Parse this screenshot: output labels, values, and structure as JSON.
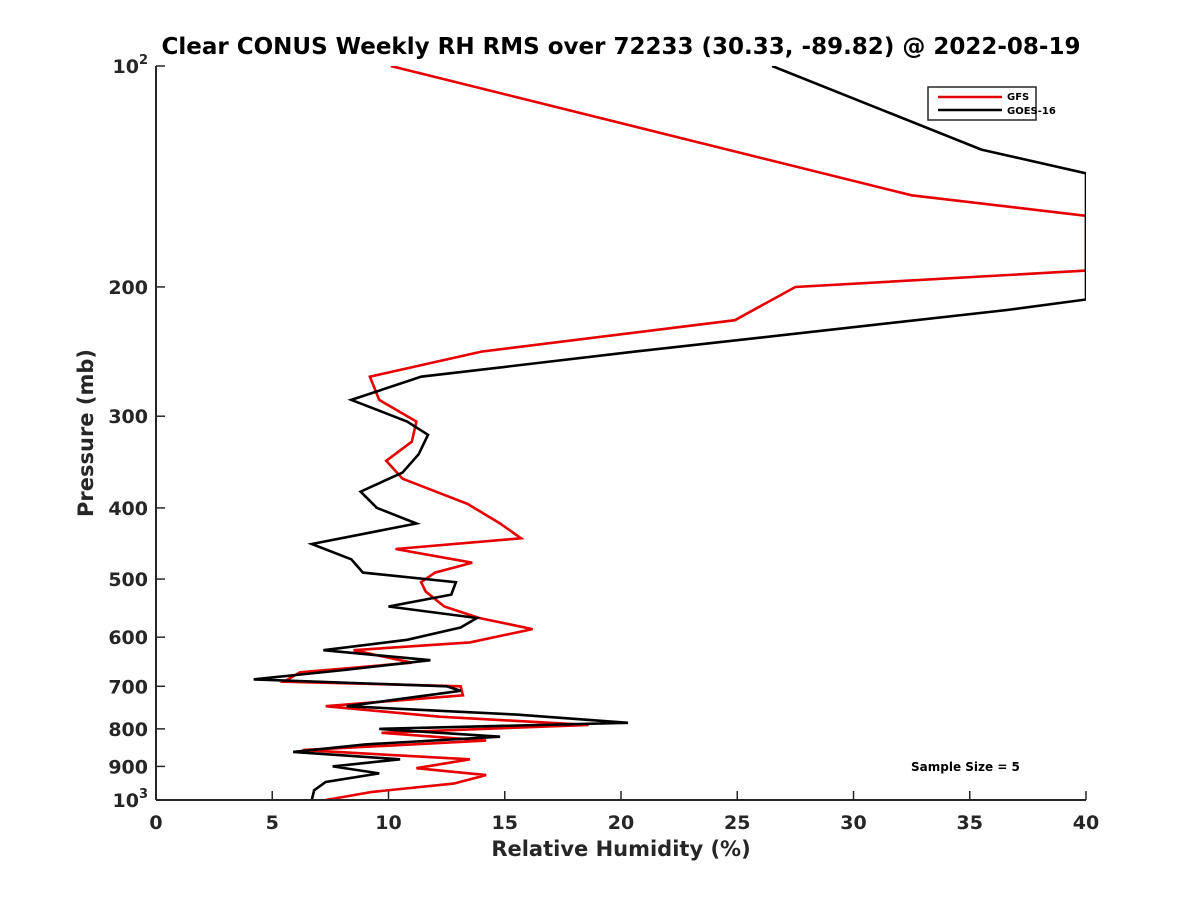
{
  "chart_data": {
    "type": "line",
    "title": "Clear CONUS Weekly RH RMS over 72233 (30.33, -89.82) @ 2022-08-19",
    "xlabel": "Relative Humidity (%)",
    "ylabel": "Pressure (mb)",
    "xlim": [
      0,
      40
    ],
    "ylim": [
      100,
      1000
    ],
    "yscale": "log",
    "y_reversed": true,
    "grid": false,
    "legend_position": "top-right",
    "x_ticks": [
      "0",
      "5",
      "10",
      "15",
      "20",
      "25",
      "30",
      "35",
      "40"
    ],
    "y_ticks": [
      {
        "value": 100,
        "base": "10",
        "exp": "2"
      },
      {
        "value": 200,
        "label": "200"
      },
      {
        "value": 300,
        "label": "300"
      },
      {
        "value": 400,
        "label": "400"
      },
      {
        "value": 500,
        "label": "500"
      },
      {
        "value": 600,
        "label": "600"
      },
      {
        "value": 700,
        "label": "700"
      },
      {
        "value": 800,
        "label": "800"
      },
      {
        "value": 900,
        "label": "900"
      },
      {
        "value": 1000,
        "base": "10",
        "exp": "3"
      }
    ],
    "annotation": "Sample Size = 5",
    "series": [
      {
        "name": "GFS",
        "color": "#e60000",
        "points": [
          [
            10.1,
            100
          ],
          [
            32.5,
            150
          ],
          [
            40,
            160
          ],
          [
            40,
            190
          ],
          [
            27.5,
            200
          ],
          [
            24.9,
            222
          ],
          [
            14,
            245
          ],
          [
            9.2,
            265
          ],
          [
            9.6,
            285
          ],
          [
            11.2,
            305
          ],
          [
            11,
            325
          ],
          [
            9.9,
            345
          ],
          [
            10.6,
            365
          ],
          [
            13.4,
            395
          ],
          [
            14.8,
            420
          ],
          [
            15.7,
            440
          ],
          [
            10.3,
            455
          ],
          [
            13.6,
            475
          ],
          [
            12,
            490
          ],
          [
            11.4,
            505
          ],
          [
            11.6,
            520
          ],
          [
            12.4,
            545
          ],
          [
            13.9,
            565
          ],
          [
            16.2,
            585
          ],
          [
            13.5,
            610
          ],
          [
            8.5,
            625
          ],
          [
            11,
            650
          ],
          [
            6.2,
            670
          ],
          [
            5.5,
            690
          ],
          [
            13.1,
            700
          ],
          [
            13.2,
            720
          ],
          [
            7.3,
            745
          ],
          [
            12.2,
            770
          ],
          [
            18.6,
            790
          ],
          [
            9.7,
            810
          ],
          [
            14.2,
            830
          ],
          [
            6.3,
            855
          ],
          [
            13.5,
            880
          ],
          [
            11.2,
            905
          ],
          [
            14.2,
            925
          ],
          [
            12.8,
            950
          ],
          [
            9.3,
            975
          ],
          [
            7.3,
            1000
          ]
        ]
      },
      {
        "name": "GOES-16",
        "color": "#000000",
        "points": [
          [
            26.5,
            100
          ],
          [
            35.5,
            130
          ],
          [
            40,
            140
          ],
          [
            40,
            208
          ],
          [
            36.6,
            215
          ],
          [
            20.6,
            245
          ],
          [
            11.4,
            265
          ],
          [
            8.4,
            285
          ],
          [
            10.8,
            305
          ],
          [
            11.7,
            318
          ],
          [
            11.3,
            338
          ],
          [
            10.6,
            358
          ],
          [
            8.8,
            380
          ],
          [
            9.5,
            400
          ],
          [
            11.2,
            420
          ],
          [
            6.7,
            448
          ],
          [
            8.4,
            470
          ],
          [
            8.9,
            490
          ],
          [
            12.9,
            505
          ],
          [
            12.7,
            525
          ],
          [
            10,
            545
          ],
          [
            13.8,
            565
          ],
          [
            13.1,
            582
          ],
          [
            10.8,
            605
          ],
          [
            7.2,
            625
          ],
          [
            11.8,
            645
          ],
          [
            8.1,
            665
          ],
          [
            4.2,
            685
          ],
          [
            12.5,
            700
          ],
          [
            13.1,
            710
          ],
          [
            8.2,
            745
          ],
          [
            15.5,
            765
          ],
          [
            20.3,
            785
          ],
          [
            9.6,
            800
          ],
          [
            14.8,
            820
          ],
          [
            9,
            840
          ],
          [
            5.9,
            860
          ],
          [
            10.5,
            880
          ],
          [
            7.6,
            900
          ],
          [
            9.6,
            920
          ],
          [
            7.3,
            945
          ],
          [
            6.8,
            970
          ],
          [
            6.7,
            1000
          ]
        ]
      }
    ]
  }
}
